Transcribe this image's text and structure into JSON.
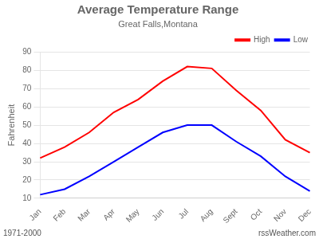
{
  "chart_data": {
    "type": "line",
    "title": "Average Temperature Range",
    "subtitle": "Great Falls,Montana",
    "y_label": "Fahrenheit",
    "categories": [
      "Jan",
      "Feb",
      "Mar",
      "Apr",
      "May",
      "Jun",
      "Jul",
      "Aug",
      "Sept",
      "Oct",
      "Nov",
      "Dec"
    ],
    "series": [
      {
        "name": "High",
        "color": "#ff0000",
        "values": [
          32,
          38,
          46,
          57,
          64,
          74,
          82,
          81,
          69,
          58,
          42,
          35
        ]
      },
      {
        "name": "Low",
        "color": "#0000ff",
        "values": [
          12,
          15,
          22,
          30,
          38,
          46,
          50,
          50,
          41,
          33,
          22,
          14
        ]
      }
    ],
    "ylim": [
      10,
      90
    ],
    "yticks": [
      10,
      20,
      30,
      40,
      50,
      60,
      70,
      80,
      90
    ],
    "grid": "y",
    "legend": "upper right",
    "annotations": [
      "1971-2000",
      "rssWeather.com"
    ]
  }
}
